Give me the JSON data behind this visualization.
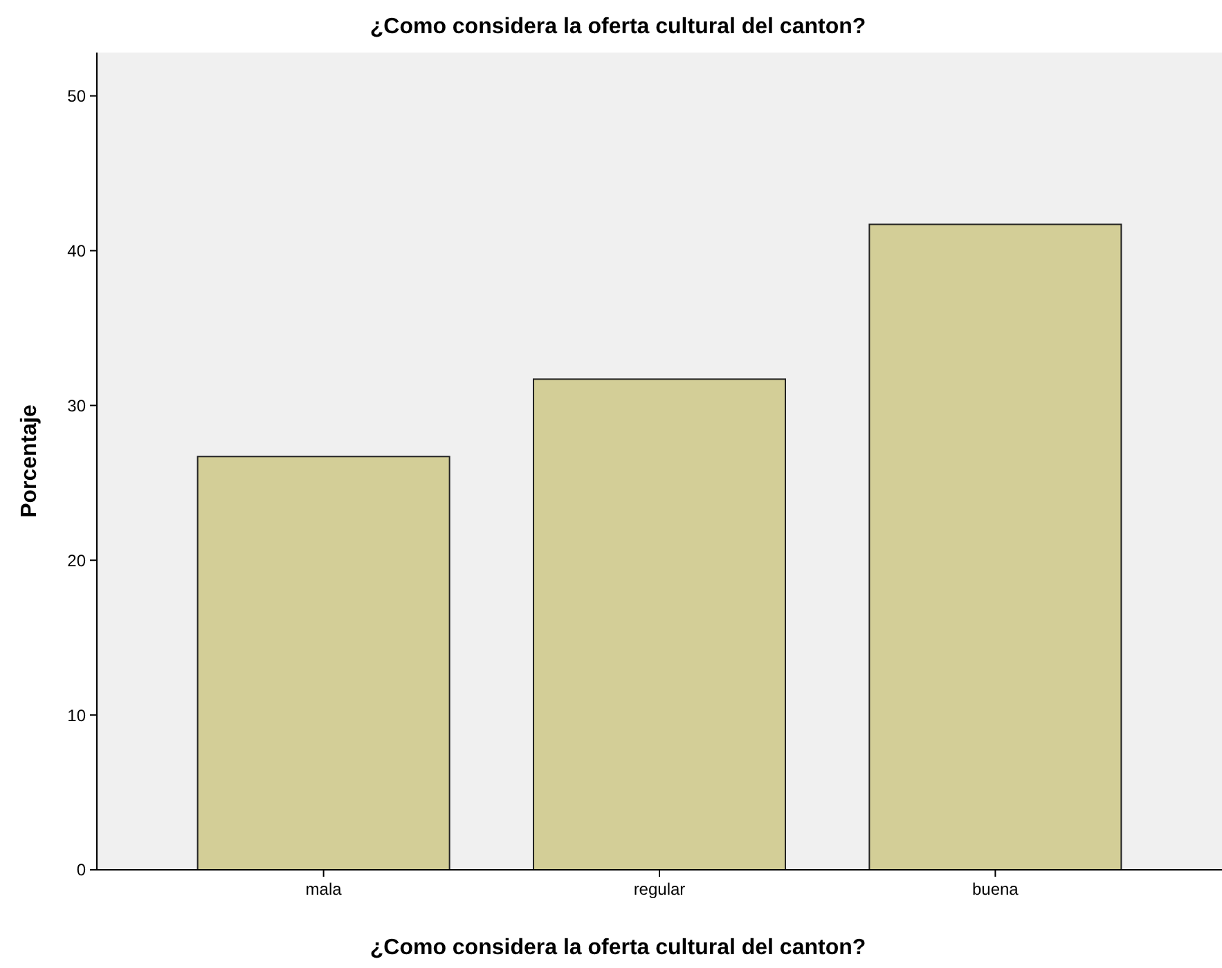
{
  "chart_data": {
    "type": "bar",
    "title": "¿Como considera la oferta cultural del canton?",
    "xlabel": "¿Como considera la oferta cultural del canton?",
    "ylabel": "Porcentaje",
    "categories": [
      "mala",
      "regular",
      "buena"
    ],
    "values": [
      26.7,
      31.7,
      41.7
    ],
    "color": "#d3ce97",
    "ylim": [
      0,
      52.8
    ],
    "yticks": [
      0,
      10,
      20,
      30,
      40,
      50
    ],
    "grid": false
  }
}
